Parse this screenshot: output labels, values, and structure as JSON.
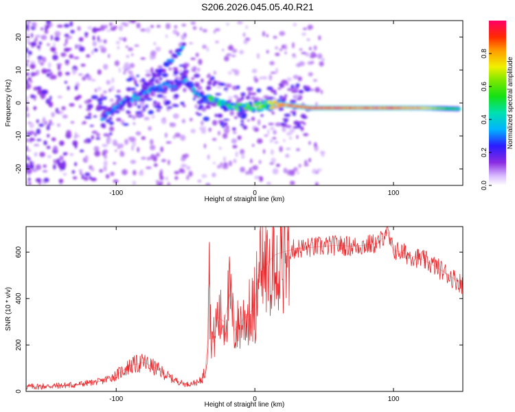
{
  "title": "S206.2026.045.05.40.R21",
  "chart_data": [
    {
      "type": "heatmap",
      "name": "spectrogram",
      "xlabel": "Height of straight line (km)",
      "ylabel": "Frequency (Hz)",
      "xlim": [
        -165,
        150
      ],
      "ylim": [
        -25,
        25
      ],
      "xticks": [
        -100,
        0,
        100
      ],
      "yticks": [
        -20,
        -10,
        0,
        10,
        20
      ],
      "xtick_labels": [
        "-100",
        "0",
        "100"
      ],
      "ytick_labels": [
        "-20",
        "-10",
        "0",
        "10",
        "20"
      ],
      "colorbar": {
        "label": "Normalized spectral amplitude",
        "range": [
          0.0,
          1.0
        ],
        "ticks": [
          0.0,
          0.2,
          0.4,
          0.6,
          0.8
        ],
        "tick_labels": [
          "0.0",
          "0.2",
          "0.4",
          "0.6",
          "0.8"
        ]
      },
      "features": {
        "main_ridge": {
          "x": [
            -110,
            -95,
            -80,
            -65,
            -50,
            -40,
            -30,
            -20,
            -10,
            0,
            10,
            20,
            40,
            60,
            80,
            100,
            120,
            148
          ],
          "y": [
            -4,
            0,
            3,
            5,
            7,
            2,
            1,
            -1,
            -1.5,
            -1,
            -0.5,
            -0.5,
            -1.5,
            -1.5,
            -1.5,
            -1.5,
            -1.5,
            -1.8
          ],
          "amplitude": [
            0.25,
            0.3,
            0.3,
            0.25,
            0.3,
            0.35,
            0.45,
            0.5,
            0.5,
            0.55,
            0.7,
            0.85,
            0.9,
            0.9,
            0.85,
            0.9,
            0.8,
            0.45
          ]
        },
        "upper_branch": {
          "x": [
            -80,
            -70,
            -60,
            -50
          ],
          "y": [
            5,
            9,
            13,
            18
          ],
          "amplitude": [
            0.2,
            0.22,
            0.25,
            0.28
          ]
        }
      }
    },
    {
      "type": "line",
      "name": "snr",
      "xlabel": "Height of straight line (km)",
      "ylabel": "SNR (10 * v/v)",
      "xlim": [
        -165,
        150
      ],
      "ylim": [
        0,
        710
      ],
      "xticks": [
        -100,
        0,
        100
      ],
      "yticks": [
        0,
        200,
        400,
        600
      ],
      "xtick_labels": [
        "-100",
        "0",
        "100"
      ],
      "ytick_labels": [
        "0",
        "200",
        "400",
        "600"
      ],
      "color": "#e8262a",
      "series": [
        {
          "name": "SNR",
          "x": [
            -165,
            -150,
            -130,
            -110,
            -100,
            -90,
            -80,
            -70,
            -60,
            -50,
            -40,
            -36,
            -34,
            -33,
            -32,
            -30,
            -27,
            -22,
            -18,
            -15,
            -10,
            -5,
            -2,
            0,
            3,
            8,
            10,
            15,
            20,
            30,
            40,
            50,
            60,
            70,
            80,
            90,
            95,
            98,
            100,
            110,
            120,
            130,
            140,
            150
          ],
          "y": [
            20,
            22,
            28,
            45,
            70,
            110,
            125,
            95,
            55,
            30,
            40,
            80,
            220,
            640,
            280,
            210,
            320,
            300,
            420,
            260,
            300,
            330,
            350,
            380,
            520,
            540,
            560,
            590,
            600,
            615,
            620,
            625,
            630,
            625,
            630,
            640,
            700,
            630,
            610,
            590,
            570,
            540,
            500,
            460
          ]
        }
      ]
    }
  ]
}
